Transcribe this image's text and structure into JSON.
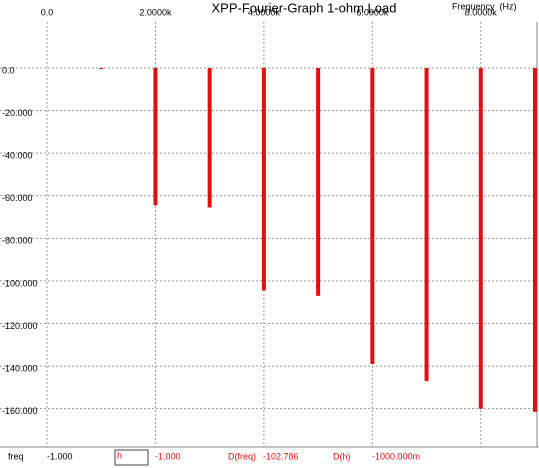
{
  "chart_data": {
    "type": "bar",
    "title": "XPP-Fourier-Graph 1-ohm Load",
    "axis_label": "Frequency  (Hz)",
    "x": [
      1000,
      2000,
      3000,
      4000,
      5000,
      6000,
      7000,
      8000,
      9000
    ],
    "values": [
      -0.5,
      -64.5,
      -65.5,
      -104.5,
      -107,
      -139,
      -147,
      -160,
      -161.5
    ],
    "color": "#e01010",
    "xlim": [
      0,
      9000
    ],
    "xticks": [
      {
        "value": 0,
        "label": "0.0"
      },
      {
        "value": 2000,
        "label": "2.0000k"
      },
      {
        "value": 4000,
        "label": "4.0000k"
      },
      {
        "value": 6000,
        "label": "6.0000k"
      },
      {
        "value": 8000,
        "label": "8.0000k"
      }
    ],
    "ylim": [
      -178,
      21.6
    ],
    "yticks": [
      {
        "value": 0,
        "label": "0.0"
      },
      {
        "value": -20,
        "label": "-20.000"
      },
      {
        "value": -40,
        "label": "-40.000"
      },
      {
        "value": -60,
        "label": "-60.000"
      },
      {
        "value": -80,
        "label": "-80.000"
      },
      {
        "value": -100,
        "label": "-100.000"
      },
      {
        "value": -120,
        "label": "-120.000"
      },
      {
        "value": -140,
        "label": "-140.000"
      },
      {
        "value": -160,
        "label": "-160.000"
      }
    ],
    "grid": true
  },
  "status_bar": {
    "x_label": "freq",
    "x_value": "-1.000",
    "input": "h",
    "y_value": "-1.000",
    "dx_label": "D(freq)",
    "dx_value": "-102.786",
    "dy_label": "D(h)",
    "dy_value": "-1000.000m"
  }
}
